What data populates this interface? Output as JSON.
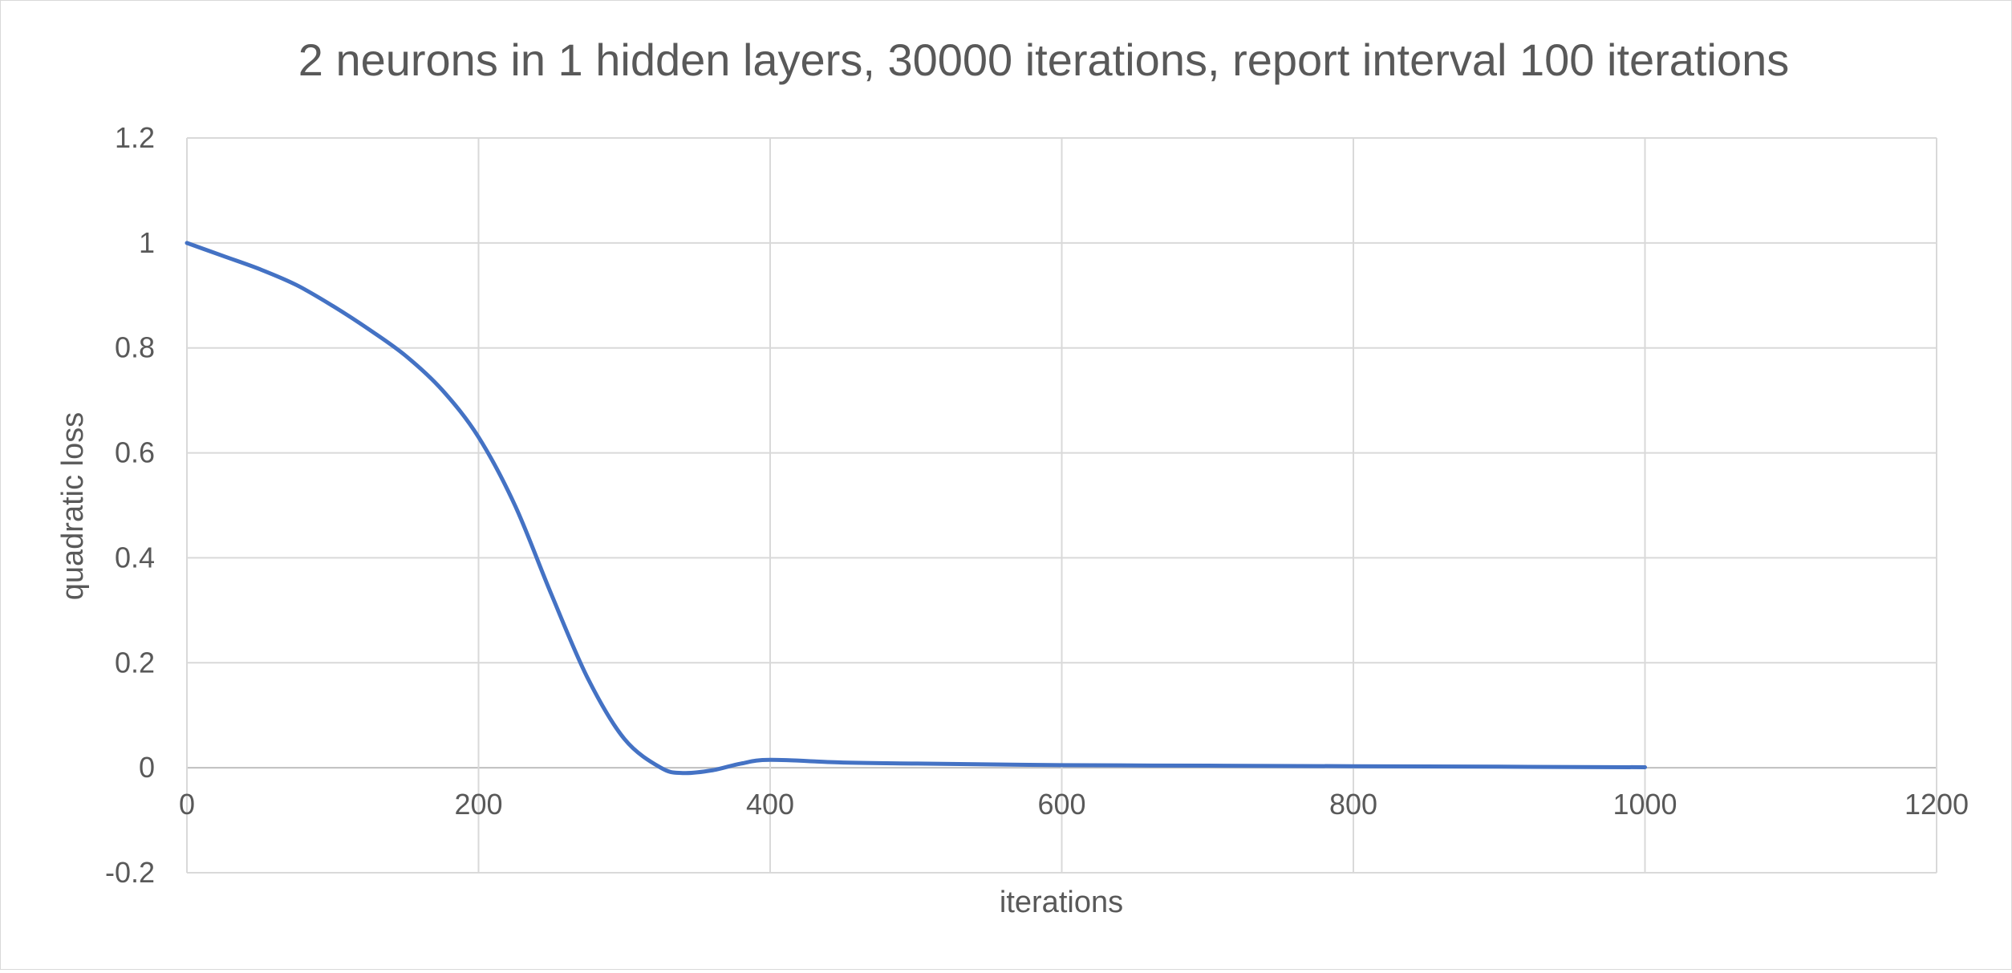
{
  "chart_data": {
    "type": "line",
    "title": "2 neurons in 1 hidden layers, 30000 iterations, report interval 100 iterations",
    "xlabel": "iterations",
    "ylabel": "quadratic loss",
    "xlim": [
      0,
      1200
    ],
    "ylim": [
      -0.2,
      1.2
    ],
    "xticks": [
      "0",
      "200",
      "400",
      "600",
      "800",
      "1000",
      "1200"
    ],
    "yticks": [
      "-0.2",
      "0",
      "0.2",
      "0.4",
      "0.6",
      "0.8",
      "1",
      "1.2"
    ],
    "grid": true,
    "line_color": "#4472C4",
    "series": [
      {
        "name": "quadratic loss",
        "x": [
          0,
          25,
          50,
          75,
          100,
          125,
          150,
          175,
          200,
          225,
          250,
          275,
          300,
          325,
          340,
          360,
          380,
          400,
          450,
          500,
          600,
          700,
          800,
          900,
          1000
        ],
        "y": [
          1.0,
          0.975,
          0.95,
          0.92,
          0.88,
          0.835,
          0.785,
          0.72,
          0.63,
          0.5,
          0.33,
          0.17,
          0.055,
          0.0,
          -0.01,
          -0.005,
          0.008,
          0.015,
          0.01,
          0.008,
          0.005,
          0.004,
          0.003,
          0.002,
          0.001
        ]
      }
    ]
  }
}
